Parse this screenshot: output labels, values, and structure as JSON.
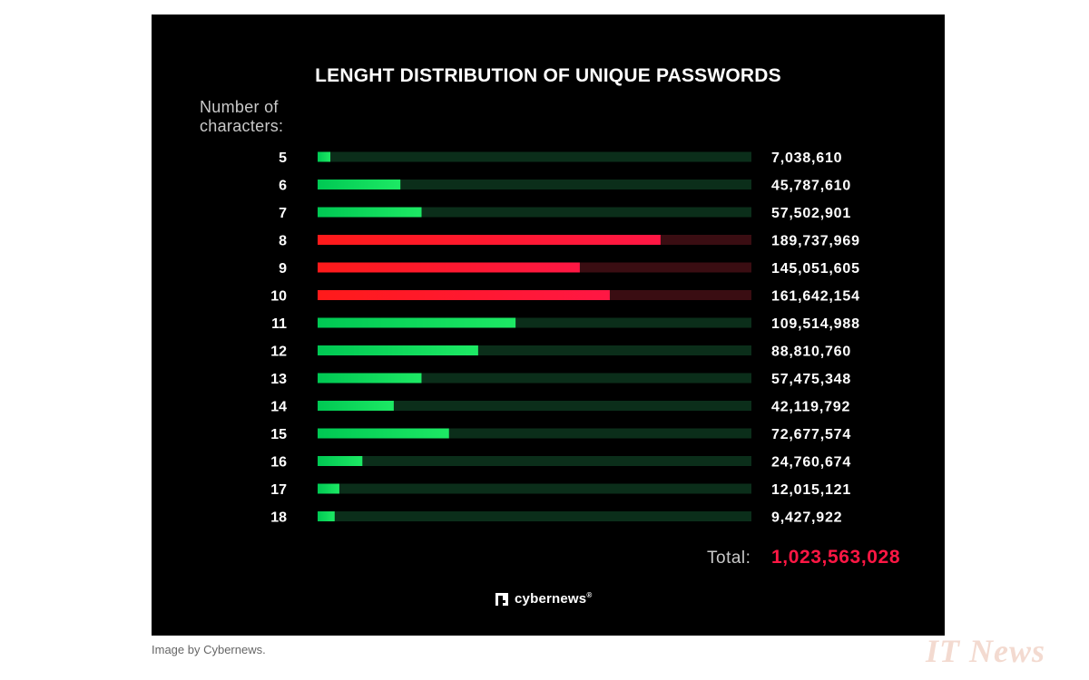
{
  "chart_data": {
    "type": "bar",
    "orientation": "horizontal",
    "title": "LENGHT DISTRIBUTION OF UNIQUE PASSWORDS",
    "ylabel_lines": [
      "Number of",
      "characters:"
    ],
    "categories": [
      "5",
      "6",
      "7",
      "8",
      "9",
      "10",
      "11",
      "12",
      "13",
      "14",
      "15",
      "16",
      "17",
      "18"
    ],
    "values": [
      7038610,
      45787610,
      57502901,
      189737969,
      145051605,
      161642154,
      109514988,
      88810760,
      57475348,
      42119792,
      72677574,
      24760674,
      12015121,
      9427922
    ],
    "value_labels": [
      "7,038,610",
      "45,787,610",
      "57,502,901",
      "189,737,969",
      "145,051,605",
      "161,642,154",
      "109,514,988",
      "88,810,760",
      "57,475,348",
      "42,119,792",
      "72,677,574",
      "24,760,674",
      "12,015,121",
      "9,427,922"
    ],
    "highlighted_categories": [
      "8",
      "9",
      "10"
    ],
    "colors": {
      "normal_fill_start": "#00c853",
      "normal_fill_end": "#1de964",
      "normal_track": "#0b2e1a",
      "highlight_fill_start": "#ff1a1a",
      "highlight_fill_end": "#ff1744",
      "highlight_track": "#3a0d12"
    },
    "total_label": "Total:",
    "total_value": "1,023,563,028",
    "total_color": "#ff1744",
    "brand": "cybernews",
    "brand_mark": "®"
  },
  "caption": "Image by Cybernews.",
  "watermark": "IT News"
}
